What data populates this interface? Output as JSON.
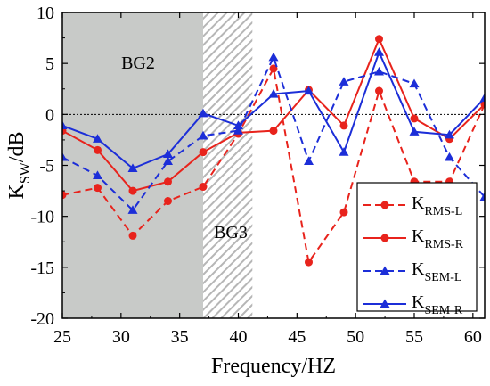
{
  "chart_data": {
    "type": "line",
    "xlabel": "Frequency/HZ",
    "ylabel": {
      "main": "K",
      "sub": "SW",
      "unit": "/dB"
    },
    "xlim": [
      25,
      61
    ],
    "ylim": [
      -20,
      10
    ],
    "xticks": [
      25,
      30,
      35,
      40,
      45,
      50,
      55,
      60
    ],
    "yticks": [
      -20,
      -15,
      -10,
      -5,
      0,
      5,
      10
    ],
    "reference_line_y": 0,
    "bands": [
      {
        "label": "BG2",
        "x_start": 25,
        "x_end": 37,
        "fill": "#c8cac8",
        "style": "solid"
      },
      {
        "label": "BG3",
        "x_start": 37,
        "x_end": 41.2,
        "fill": "#b6b6b6",
        "style": "hatched"
      }
    ],
    "legend_position": "bottom-right",
    "series": [
      {
        "main": "K",
        "sub": "RMS-L",
        "color": "#e8231c",
        "marker": "circle",
        "dash": true,
        "x": [
          25,
          28,
          31,
          34,
          37,
          40,
          43,
          46,
          49,
          52,
          55,
          58,
          61
        ],
        "y": [
          -7.9,
          -7.2,
          -11.9,
          -8.5,
          -7.1,
          -1.9,
          4.5,
          -14.5,
          -9.6,
          2.3,
          -6.6,
          -6.6,
          1.0
        ]
      },
      {
        "main": "K",
        "sub": "RMS-R",
        "color": "#e8231c",
        "marker": "circle",
        "dash": false,
        "x": [
          25,
          28,
          31,
          34,
          37,
          40,
          43,
          46,
          49,
          52,
          55,
          58,
          61
        ],
        "y": [
          -1.6,
          -3.5,
          -7.5,
          -6.6,
          -3.7,
          -1.8,
          -1.6,
          2.4,
          -1.1,
          7.4,
          -0.4,
          -2.4,
          1.0
        ]
      },
      {
        "main": "K",
        "sub": "SEM-L",
        "color": "#1c2ed8",
        "marker": "triangle",
        "dash": true,
        "x": [
          25,
          28,
          31,
          34,
          37,
          40,
          43,
          46,
          49,
          52,
          55,
          58,
          61
        ],
        "y": [
          -4.2,
          -6.0,
          -9.4,
          -4.6,
          -2.1,
          -1.6,
          5.6,
          -4.6,
          3.2,
          4.2,
          3.0,
          -4.2,
          -8.1
        ]
      },
      {
        "main": "K",
        "sub": "SEM-R",
        "color": "#1c2ed8",
        "marker": "triangle",
        "dash": false,
        "x": [
          25,
          28,
          31,
          34,
          37,
          40,
          43,
          46,
          49,
          52,
          55,
          58,
          61
        ],
        "y": [
          -1.1,
          -2.4,
          -5.3,
          -3.9,
          0.1,
          -1.1,
          2.0,
          2.3,
          -3.7,
          6.1,
          -1.7,
          -2.0,
          1.6
        ]
      }
    ]
  }
}
